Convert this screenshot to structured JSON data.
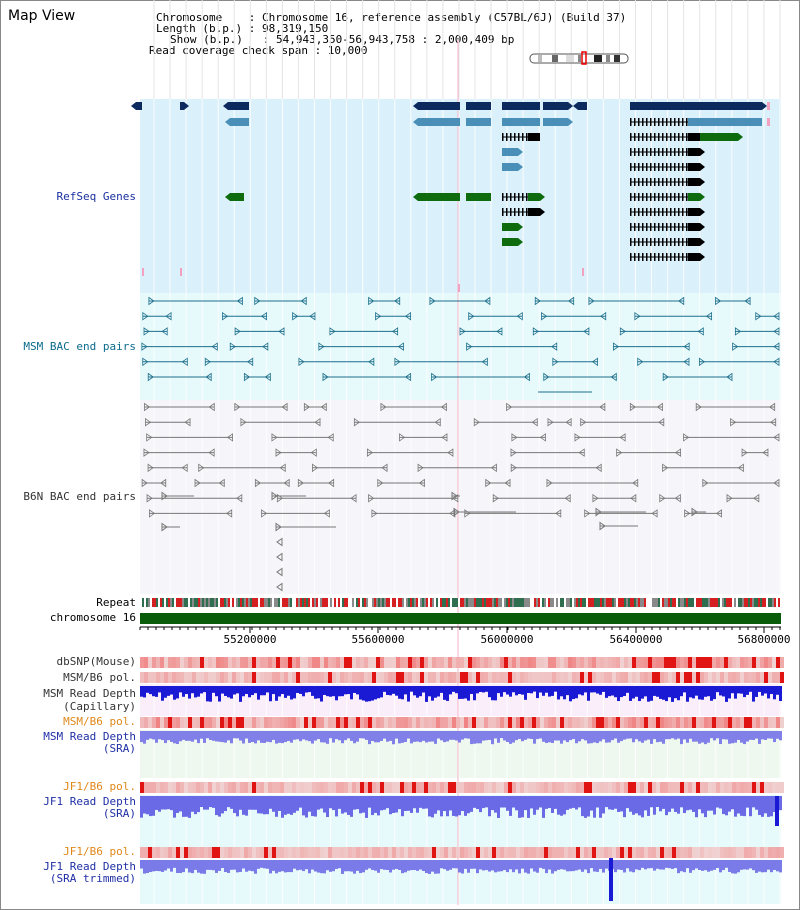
{
  "page": {
    "title": "Map View"
  },
  "header": {
    "lines": [
      "Chromosome    : Chromosome 16, reference assembly (C57BL/6J) (Build 37)",
      "Length (b.p.) : 98,319,150",
      "Show (b.p.)   : 54,943,350-56,943,758 : 2,000,409 bp",
      "Read coverage check span : 10,000"
    ]
  },
  "tracks": {
    "refseq": "RefSeq Genes",
    "msm_bac": "MSM BAC end pairs",
    "b6n_bac": "B6N BAC end pairs",
    "repeat": "Repeat",
    "chromosome": "chromosome 16",
    "dbsnp": "dbSNP(Mouse)",
    "msm_b6_pol_1": "MSM/B6 pol.",
    "msm_read_depth_cap_1": "MSM Read Depth",
    "msm_read_depth_cap_2": "(Capillary)",
    "msm_b6_pol_2": "MSM/B6 pol.",
    "msm_read_depth_sra_1": "MSM Read Depth",
    "msm_read_depth_sra_2": "(SRA)",
    "jf1_b6_pol_1": "JF1/B6 pol.",
    "jf1_read_depth_sra_1": "JF1 Read Depth",
    "jf1_read_depth_sra_2": "(SRA)",
    "jf1_b6_pol_2": "JF1/B6 pol.",
    "jf1_read_depth_trim_1": "JF1 Read Depth",
    "jf1_read_depth_trim_2": "(SRA trimmed)"
  },
  "axis": {
    "ticks": [
      "55200000",
      "55600000",
      "56000000",
      "56400000",
      "56800000"
    ]
  },
  "colors": {
    "refseq_bg": "#daf0fb",
    "msm_bg": "#e6f9fb",
    "b6n_bg": "#f5f5fa",
    "gene_navy": "#0c2a5e",
    "gene_steel": "#4a8fb8",
    "gene_green": "#0e6b0e",
    "bac_teal": "#1d6f8c",
    "bac_gray": "#777777",
    "chromosome_green": "#0a5c0a",
    "depth_blue": "#1a1ad4",
    "depth_light": "#8080e8",
    "snp_red": "#e84040"
  }
}
